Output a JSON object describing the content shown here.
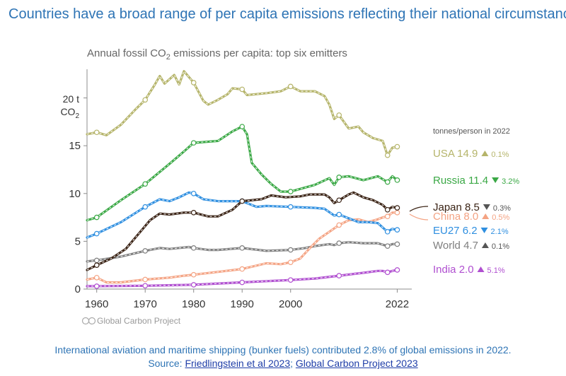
{
  "headline": "Countries have a broad range of per capita emissions reflecting their national circumstances",
  "footer": {
    "note": "International aviation and maritime shipping (bunker fuels) contributed 2.8% of global emissions in 2022.",
    "source_prefix": "Source: ",
    "link1": "Friedlingstein et al 2023",
    "separator": "; ",
    "link2": "Global Carbon Project 2023"
  },
  "credit": "Global Carbon Project",
  "colors": {
    "USA": "#b5b46a",
    "Russia": "#3aa845",
    "Japan": "#3b2416",
    "China": "#f4a383",
    "EU27": "#2f8fe0",
    "World": "#7f7f7f",
    "India": "#b04fd0"
  },
  "chart_data": {
    "type": "line",
    "title": "Annual fossil CO2 emissions per capita: top six emitters",
    "title_parts": {
      "pre": "Annual fossil CO",
      "sub": "2",
      "post": " emissions per capita: top six emitters"
    },
    "ylabel": "t CO2",
    "unit_label": {
      "line1": "20 t",
      "line2_pre": "CO",
      "line2_sub": "2"
    },
    "xlim": [
      1958,
      2025
    ],
    "ylim": [
      0,
      23
    ],
    "x_ticks": [
      "1960",
      "1970",
      "1980",
      "1990",
      "2000",
      "2022"
    ],
    "y_ticks": [
      "0",
      "5",
      "10",
      "15"
    ],
    "grid": false,
    "legend_header": "tonnes/person in 2022",
    "legend_placement": "right",
    "legend": [
      {
        "name": "USA",
        "value": "14.9",
        "arrow": "up",
        "pct": "0.1%"
      },
      {
        "name": "Russia",
        "value": "11.4",
        "arrow": "down",
        "pct": "3.2%"
      },
      {
        "name": "Japan",
        "value": "8.5",
        "arrow": "down",
        "pct": "0.3%"
      },
      {
        "name": "China",
        "value": "8.0",
        "arrow": "up",
        "pct": "0.5%"
      },
      {
        "name": "EU27",
        "value": "6.2",
        "arrow": "down",
        "pct": "2.1%"
      },
      {
        "name": "World",
        "value": "4.7",
        "arrow": "up",
        "pct": "0.1%"
      },
      {
        "name": "India",
        "value": "2.0",
        "arrow": "up",
        "pct": "5.1%"
      }
    ],
    "series": [
      {
        "name": "USA",
        "points": [
          [
            1958,
            16.2
          ],
          [
            1960,
            16.4
          ],
          [
            1962,
            16.1
          ],
          [
            1965,
            17.2
          ],
          [
            1968,
            18.8
          ],
          [
            1970,
            19.8
          ],
          [
            1972,
            21.4
          ],
          [
            1973,
            22.3
          ],
          [
            1974,
            21.5
          ],
          [
            1976,
            22.4
          ],
          [
            1977,
            21.4
          ],
          [
            1978,
            22.8
          ],
          [
            1980,
            21.6
          ],
          [
            1982,
            19.7
          ],
          [
            1983,
            19.3
          ],
          [
            1985,
            19.8
          ],
          [
            1987,
            20.4
          ],
          [
            1988,
            21.0
          ],
          [
            1990,
            20.9
          ],
          [
            1991,
            20.3
          ],
          [
            1995,
            20.5
          ],
          [
            1998,
            20.7
          ],
          [
            2000,
            21.2
          ],
          [
            2002,
            20.7
          ],
          [
            2005,
            20.7
          ],
          [
            2007,
            20.2
          ],
          [
            2008,
            19.3
          ],
          [
            2009,
            17.8
          ],
          [
            2010,
            18.2
          ],
          [
            2012,
            16.8
          ],
          [
            2014,
            17.0
          ],
          [
            2015,
            16.4
          ],
          [
            2017,
            15.8
          ],
          [
            2019,
            15.5
          ],
          [
            2020,
            14.0
          ],
          [
            2021,
            14.8
          ],
          [
            2022,
            14.9
          ]
        ]
      },
      {
        "name": "Russia",
        "points": [
          [
            1958,
            7.2
          ],
          [
            1960,
            7.5
          ],
          [
            1965,
            9.3
          ],
          [
            1970,
            11.0
          ],
          [
            1975,
            13.1
          ],
          [
            1978,
            14.4
          ],
          [
            1980,
            15.3
          ],
          [
            1985,
            15.5
          ],
          [
            1988,
            16.5
          ],
          [
            1990,
            17.0
          ],
          [
            1991,
            16.2
          ],
          [
            1992,
            13.2
          ],
          [
            1994,
            12.0
          ],
          [
            1996,
            11.0
          ],
          [
            1998,
            10.2
          ],
          [
            2000,
            10.2
          ],
          [
            2005,
            10.9
          ],
          [
            2008,
            11.6
          ],
          [
            2009,
            10.9
          ],
          [
            2010,
            11.7
          ],
          [
            2012,
            11.8
          ],
          [
            2015,
            11.4
          ],
          [
            2018,
            11.8
          ],
          [
            2020,
            11.2
          ],
          [
            2021,
            11.8
          ],
          [
            2022,
            11.4
          ]
        ]
      },
      {
        "name": "Japan",
        "points": [
          [
            1958,
            2.0
          ],
          [
            1960,
            2.5
          ],
          [
            1963,
            3.2
          ],
          [
            1966,
            4.2
          ],
          [
            1969,
            6.0
          ],
          [
            1971,
            7.2
          ],
          [
            1973,
            7.9
          ],
          [
            1975,
            7.8
          ],
          [
            1978,
            8.0
          ],
          [
            1980,
            8.0
          ],
          [
            1983,
            7.6
          ],
          [
            1985,
            7.6
          ],
          [
            1988,
            8.3
          ],
          [
            1990,
            9.2
          ],
          [
            1994,
            9.4
          ],
          [
            1996,
            9.8
          ],
          [
            1999,
            9.6
          ],
          [
            2002,
            9.7
          ],
          [
            2004,
            9.9
          ],
          [
            2007,
            9.9
          ],
          [
            2008,
            9.6
          ],
          [
            2009,
            9.0
          ],
          [
            2010,
            9.3
          ],
          [
            2012,
            9.9
          ],
          [
            2013,
            10.1
          ],
          [
            2015,
            9.6
          ],
          [
            2017,
            9.3
          ],
          [
            2019,
            8.8
          ],
          [
            2020,
            8.3
          ],
          [
            2021,
            8.6
          ],
          [
            2022,
            8.5
          ]
        ]
      },
      {
        "name": "China",
        "points": [
          [
            1958,
            1.0
          ],
          [
            1960,
            1.2
          ],
          [
            1962,
            0.7
          ],
          [
            1965,
            0.7
          ],
          [
            1970,
            1.0
          ],
          [
            1975,
            1.2
          ],
          [
            1978,
            1.4
          ],
          [
            1980,
            1.5
          ],
          [
            1985,
            1.8
          ],
          [
            1990,
            2.1
          ],
          [
            1995,
            2.7
          ],
          [
            1998,
            2.6
          ],
          [
            2000,
            2.8
          ],
          [
            2002,
            3.2
          ],
          [
            2004,
            4.3
          ],
          [
            2006,
            5.3
          ],
          [
            2008,
            6.0
          ],
          [
            2010,
            6.7
          ],
          [
            2012,
            7.2
          ],
          [
            2014,
            7.3
          ],
          [
            2016,
            7.0
          ],
          [
            2018,
            7.3
          ],
          [
            2019,
            7.5
          ],
          [
            2020,
            7.6
          ],
          [
            2021,
            8.0
          ],
          [
            2022,
            8.0
          ]
        ]
      },
      {
        "name": "EU27",
        "points": [
          [
            1958,
            5.4
          ],
          [
            1960,
            5.8
          ],
          [
            1965,
            7.0
          ],
          [
            1970,
            8.6
          ],
          [
            1973,
            9.4
          ],
          [
            1975,
            9.2
          ],
          [
            1977,
            9.6
          ],
          [
            1979,
            10.1
          ],
          [
            1980,
            10.0
          ],
          [
            1982,
            9.4
          ],
          [
            1985,
            9.2
          ],
          [
            1990,
            9.2
          ],
          [
            1993,
            8.6
          ],
          [
            1995,
            8.7
          ],
          [
            2000,
            8.6
          ],
          [
            2005,
            8.5
          ],
          [
            2007,
            8.4
          ],
          [
            2009,
            7.7
          ],
          [
            2010,
            7.8
          ],
          [
            2012,
            7.4
          ],
          [
            2014,
            7.0
          ],
          [
            2016,
            7.0
          ],
          [
            2018,
            6.9
          ],
          [
            2020,
            6.0
          ],
          [
            2021,
            6.3
          ],
          [
            2022,
            6.2
          ]
        ]
      },
      {
        "name": "World",
        "points": [
          [
            1958,
            2.9
          ],
          [
            1960,
            3.0
          ],
          [
            1965,
            3.4
          ],
          [
            1970,
            4.0
          ],
          [
            1973,
            4.3
          ],
          [
            1975,
            4.2
          ],
          [
            1979,
            4.4
          ],
          [
            1980,
            4.3
          ],
          [
            1983,
            4.1
          ],
          [
            1985,
            4.1
          ],
          [
            1990,
            4.3
          ],
          [
            1995,
            4.0
          ],
          [
            2000,
            4.1
          ],
          [
            2003,
            4.3
          ],
          [
            2005,
            4.5
          ],
          [
            2008,
            4.7
          ],
          [
            2009,
            4.6
          ],
          [
            2010,
            4.8
          ],
          [
            2012,
            4.9
          ],
          [
            2015,
            4.8
          ],
          [
            2018,
            4.8
          ],
          [
            2020,
            4.5
          ],
          [
            2021,
            4.7
          ],
          [
            2022,
            4.7
          ]
        ]
      },
      {
        "name": "India",
        "points": [
          [
            1958,
            0.3
          ],
          [
            1960,
            0.3
          ],
          [
            1970,
            0.35
          ],
          [
            1980,
            0.45
          ],
          [
            1990,
            0.7
          ],
          [
            2000,
            0.95
          ],
          [
            2005,
            1.1
          ],
          [
            2010,
            1.4
          ],
          [
            2015,
            1.7
          ],
          [
            2018,
            1.9
          ],
          [
            2019,
            1.9
          ],
          [
            2020,
            1.75
          ],
          [
            2021,
            1.9
          ],
          [
            2022,
            2.0
          ]
        ]
      }
    ]
  }
}
